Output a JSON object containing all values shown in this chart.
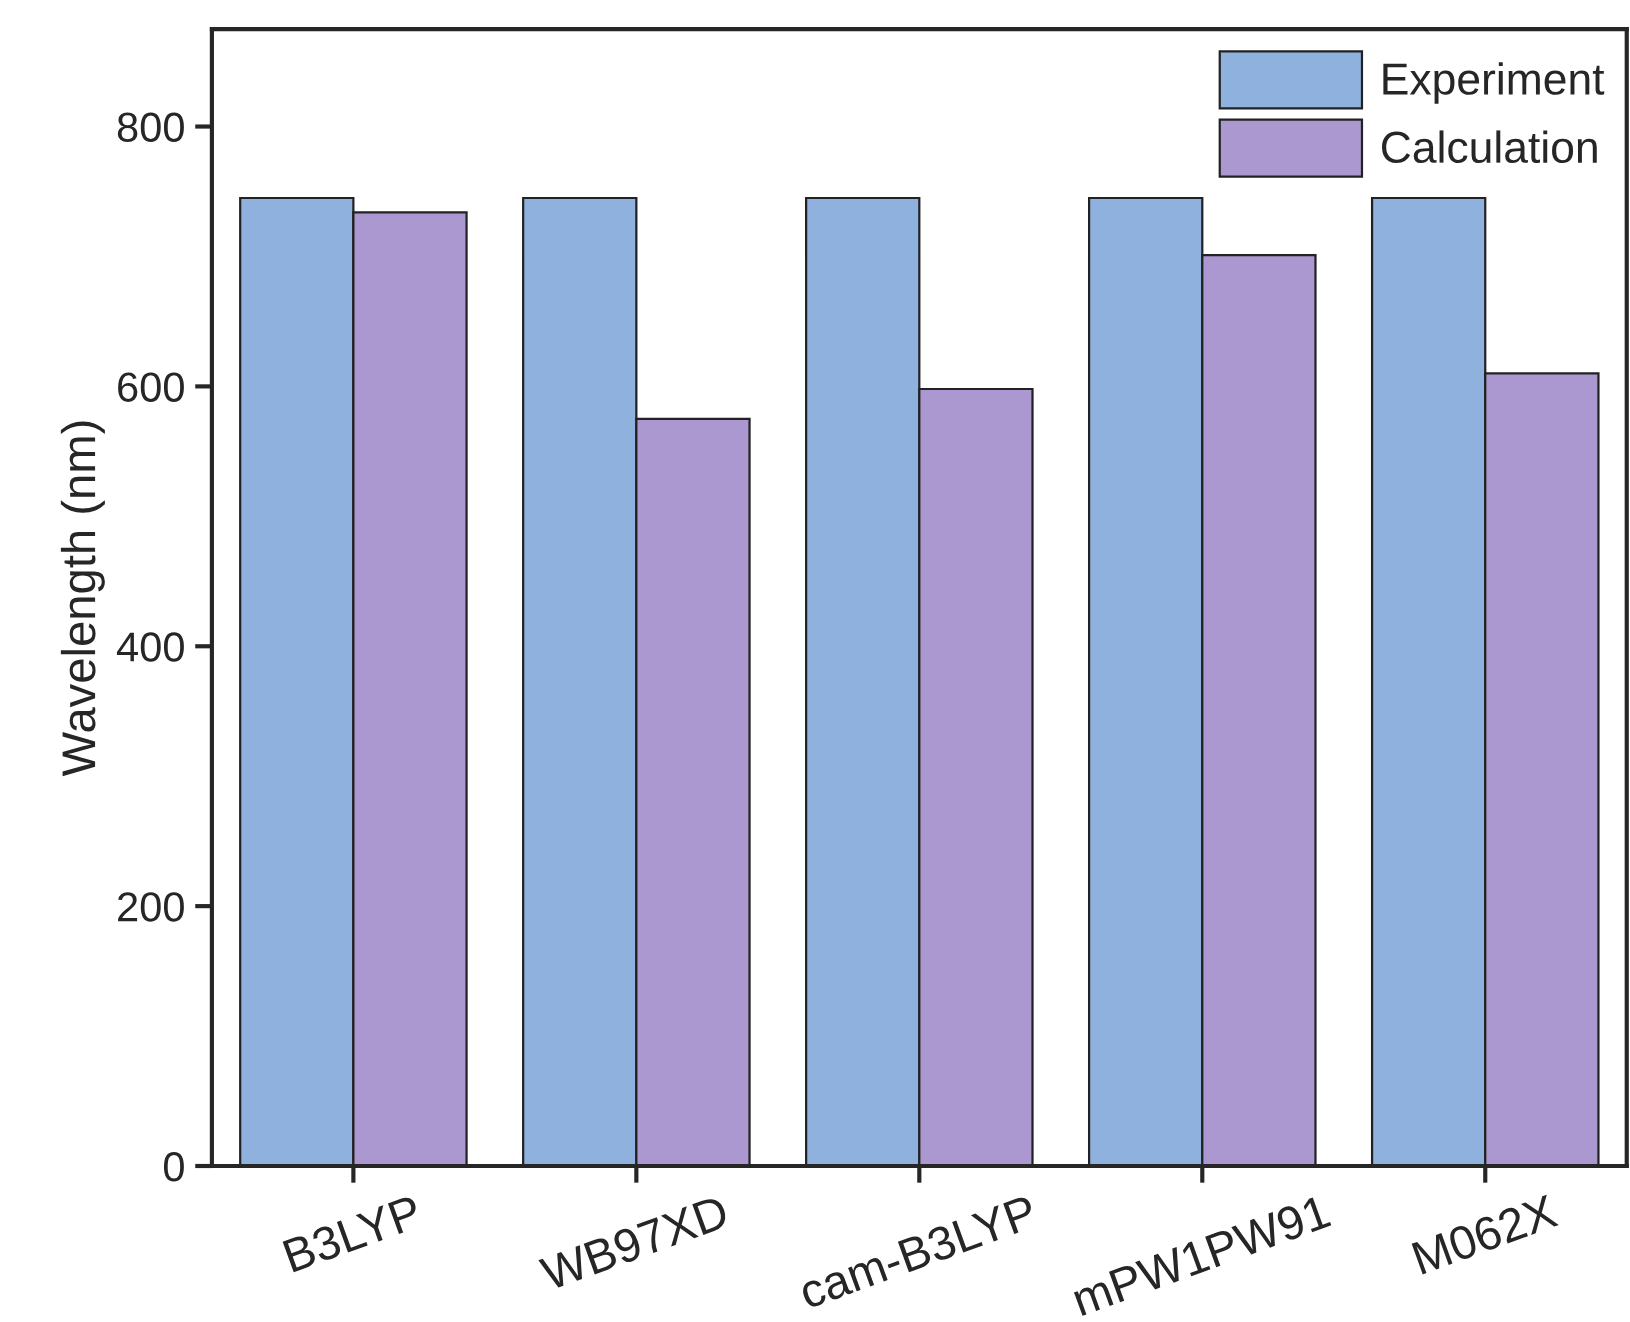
{
  "chart_data": {
    "type": "bar",
    "ylabel": "Wavelength (nm)",
    "categories": [
      "B3LYP",
      "WB97XD",
      "cam-B3LYP",
      "mPW1PW91",
      "M062X"
    ],
    "series": [
      {
        "name": "Experiment",
        "color": "#8eb2dd",
        "values": [
          745,
          745,
          745,
          745,
          745
        ]
      },
      {
        "name": "Calculation",
        "color": "#ab98d1",
        "values": [
          734,
          575,
          598,
          701,
          610
        ]
      }
    ],
    "ylim": [
      0,
      875
    ],
    "yticks": [
      0,
      200,
      400,
      600,
      800
    ],
    "grid": false,
    "legend": "top right"
  }
}
